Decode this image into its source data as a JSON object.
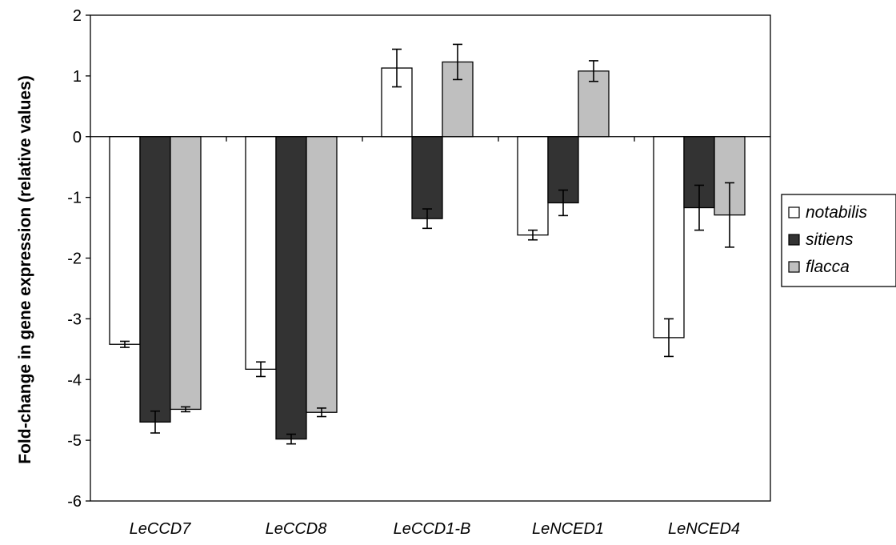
{
  "chart_data": {
    "type": "bar",
    "title": "",
    "xlabel": "",
    "ylabel": "Fold-change in gene expression (relative values)",
    "ylim": [
      -6,
      2
    ],
    "yticks": [
      "2",
      "1",
      "0",
      "-1",
      "-2",
      "-3",
      "-4",
      "-5",
      "-6"
    ],
    "categories": [
      "LeCCD7",
      "LeCCD8",
      "LeCCD1-B",
      "LeNCED1",
      "LeNCED4"
    ],
    "series": [
      {
        "name": "notabilis",
        "color": "#ffffff",
        "values": [
          -3.42,
          -3.83,
          1.13,
          -1.62,
          -3.31
        ],
        "errors": [
          0.05,
          0.12,
          0.31,
          0.08,
          0.31
        ]
      },
      {
        "name": "sitiens",
        "color": "#333333",
        "values": [
          -4.7,
          -4.98,
          -1.35,
          -1.09,
          -1.17
        ],
        "errors": [
          0.18,
          0.08,
          0.16,
          0.21,
          0.37
        ]
      },
      {
        "name": "flacca",
        "color": "#bfbfbf",
        "values": [
          -4.49,
          -4.54,
          1.23,
          1.08,
          -1.29
        ],
        "errors": [
          0.04,
          0.07,
          0.29,
          0.17,
          0.53
        ]
      }
    ],
    "legend": {
      "position": "right"
    },
    "grid": false
  }
}
